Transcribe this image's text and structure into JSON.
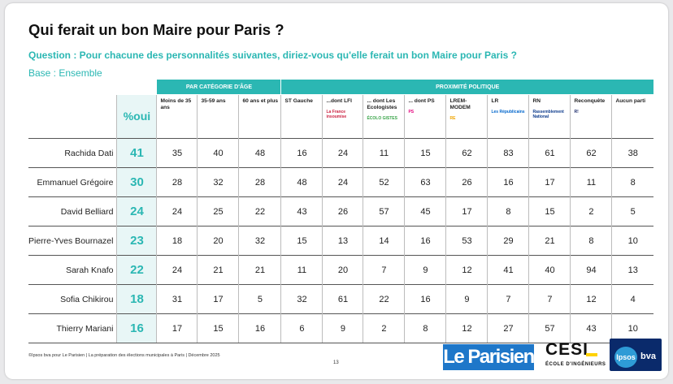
{
  "title": "Qui ferait un bon Maire pour Paris ?",
  "question": "Question : Pour chacune des personnalités suivantes, diriez-vous qu'elle ferait un bon Maire pour Paris ?",
  "base": "Base : Ensemble",
  "pct_label": "%oui",
  "groups": {
    "age": "PAR CATÉGORIE D'ÂGE",
    "politique": "PROXIMITÉ POLITIQUE"
  },
  "column_headers": [
    {
      "key": "moins35",
      "label": "Moins de 35 ans"
    },
    {
      "key": "35_59",
      "label": "35-59 ans"
    },
    {
      "key": "60plus",
      "label": "60 ans et plus"
    },
    {
      "key": "st_gauche",
      "label": "ST Gauche"
    },
    {
      "key": "lfi",
      "label": "...dont LFI",
      "logo": "La France insoumise"
    },
    {
      "key": "ecolo",
      "label": "... dont Les Ecologistes",
      "logo": "ÉCOLO GISTES"
    },
    {
      "key": "ps",
      "label": "... dont PS",
      "logo": "PS"
    },
    {
      "key": "lrem",
      "label": "LREM-MODEM",
      "logo": "RE"
    },
    {
      "key": "lr",
      "label": "LR",
      "logo": "Les Républicains"
    },
    {
      "key": "rn",
      "label": "RN",
      "logo": "Rassemblement National"
    },
    {
      "key": "reconquete",
      "label": "Reconquête",
      "logo": "R!"
    },
    {
      "key": "aucun",
      "label": "Aucun parti"
    }
  ],
  "chart_data": {
    "type": "table",
    "title": "Qui ferait un bon Maire pour Paris ?",
    "row_labels": [
      "Rachida Dati",
      "Emmanuel Grégoire",
      "David Belliard",
      "Pierre-Yves Bournazel",
      "Sarah Knafo",
      "Sofia Chikirou",
      "Thierry Mariani"
    ],
    "pct_oui": [
      41,
      30,
      24,
      23,
      22,
      18,
      16
    ],
    "columns": [
      "Moins de 35 ans",
      "35-59 ans",
      "60 ans et plus",
      "ST Gauche",
      "...dont LFI",
      "... dont Les Ecologistes",
      "... dont PS",
      "LREM-MODEM",
      "LR",
      "RN",
      "Reconquête",
      "Aucun parti"
    ],
    "values": [
      [
        35,
        40,
        48,
        16,
        24,
        11,
        15,
        62,
        83,
        61,
        62,
        38
      ],
      [
        28,
        32,
        28,
        48,
        24,
        52,
        63,
        26,
        16,
        17,
        11,
        8
      ],
      [
        24,
        25,
        22,
        43,
        26,
        57,
        45,
        17,
        8,
        15,
        2,
        5
      ],
      [
        18,
        20,
        32,
        15,
        13,
        14,
        16,
        53,
        29,
        21,
        8,
        10
      ],
      [
        24,
        21,
        21,
        11,
        20,
        7,
        9,
        12,
        41,
        40,
        94,
        13
      ],
      [
        31,
        17,
        5,
        32,
        61,
        22,
        16,
        9,
        7,
        7,
        12,
        4
      ],
      [
        17,
        15,
        16,
        6,
        9,
        2,
        8,
        12,
        27,
        57,
        43,
        10
      ]
    ]
  },
  "footer": "©Ipsos bva pour Le Parisien | La préparation des élections municipales à Paris | Décembre 2025",
  "page_number": "13",
  "logos": {
    "parisien": "Le Parisien",
    "cesi": "CESI",
    "cesi_sub": "ÉCOLE D'INGÉNIEURS",
    "ipsos": "Ipsos",
    "bva": "bva"
  },
  "colors": {
    "accent": "#2bb7b3",
    "lfi": "#cc2443",
    "ecolo": "#3aa54a",
    "ps": "#e4007c",
    "lrem": "#f0a500",
    "lr": "#0066cc",
    "rn": "#0d3b8c",
    "reconquete": "#1b2a6b"
  }
}
